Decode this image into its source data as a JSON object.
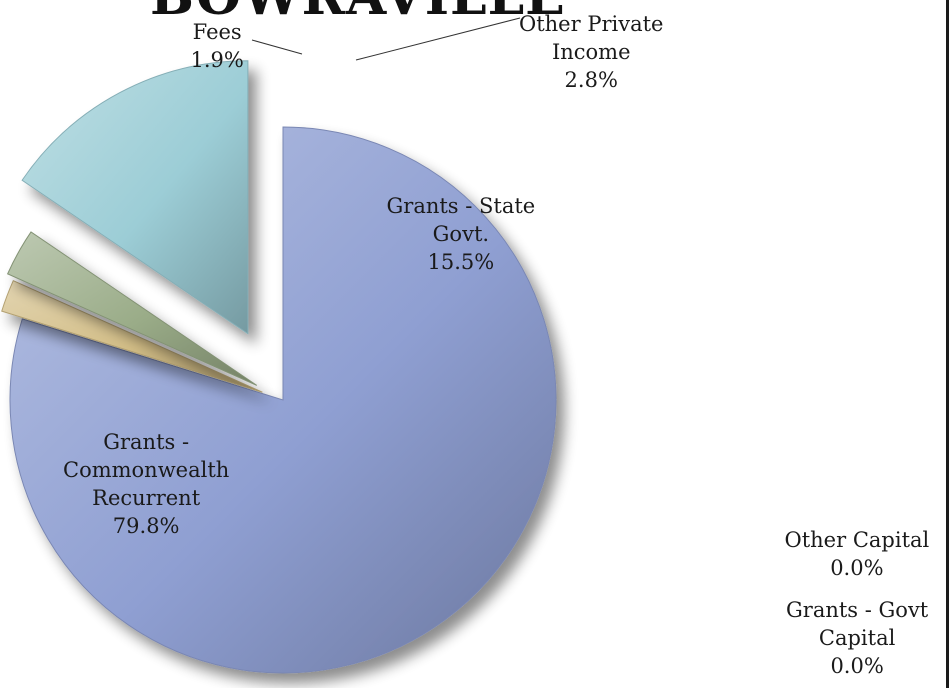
{
  "chart_data": {
    "type": "pie",
    "title": "BOWRAVILLE",
    "slices": [
      {
        "name_lines": [
          "Grants -",
          "Commonwealth",
          "Recurrent"
        ],
        "pct_label": "79.8%",
        "value": 79.8,
        "color": "#8f9fd2"
      },
      {
        "name_lines": [
          "Fees"
        ],
        "pct_label": "1.9%",
        "value": 1.9,
        "color": "#d2bd86"
      },
      {
        "name_lines": [
          "Other Private",
          "Income"
        ],
        "pct_label": "2.8%",
        "value": 2.8,
        "color": "#9aac88"
      },
      {
        "name_lines": [
          "Grants - State",
          "Govt."
        ],
        "pct_label": "15.5%",
        "value": 15.5,
        "color": "#9ccdd6"
      },
      {
        "name_lines": [
          "Other Capital"
        ],
        "pct_label": "0.0%",
        "value": 0.0,
        "color": "#b6a3cf"
      },
      {
        "name_lines": [
          "Grants - Govt",
          "Capital"
        ],
        "pct_label": "0.0%",
        "value": 0.0,
        "color": "#8fb8d4"
      }
    ]
  }
}
